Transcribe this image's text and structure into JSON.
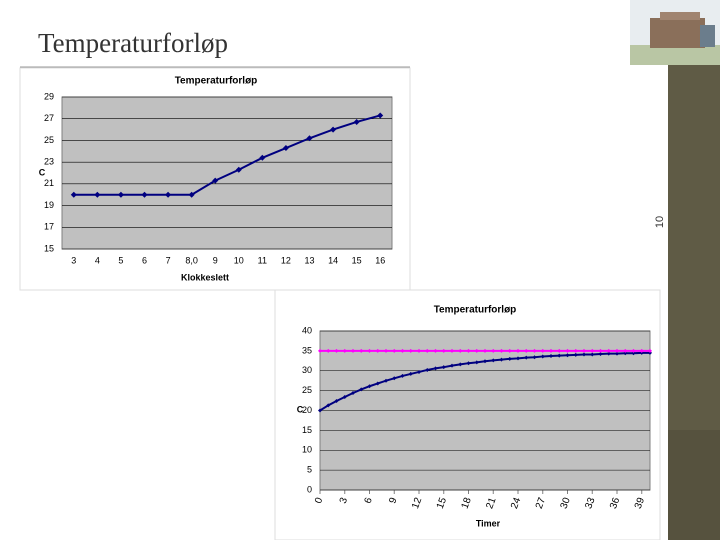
{
  "slide": {
    "title": "Temperaturforløp",
    "page_number": "10"
  },
  "chart_data": [
    {
      "type": "line",
      "title": "Temperaturforløp",
      "x_label": "Klokkeslett",
      "y_label": "C",
      "categories": [
        "3",
        "4",
        "5",
        "6",
        "7",
        "8,0",
        "9",
        "10",
        "11",
        "12",
        "13",
        "14",
        "15",
        "16"
      ],
      "series": [
        {
          "color": "#000080",
          "values": [
            20,
            20,
            20,
            20,
            20,
            20,
            21.3,
            22.3,
            23.4,
            24.3,
            25.2,
            26.0,
            26.7,
            27.3
          ]
        }
      ],
      "ylim": [
        15,
        29
      ],
      "yticks": [
        15,
        17,
        19,
        21,
        23,
        25,
        27,
        29
      ],
      "grid": true
    },
    {
      "type": "line",
      "title": "Temperaturforløp",
      "x_label": "Timer",
      "y_label": "C",
      "x": [
        0,
        1,
        2,
        3,
        4,
        5,
        6,
        7,
        8,
        9,
        10,
        11,
        12,
        13,
        14,
        15,
        16,
        17,
        18,
        19,
        20,
        21,
        22,
        23,
        24,
        25,
        26,
        27,
        28,
        29,
        30,
        31,
        32,
        33,
        34,
        35,
        36,
        37,
        38,
        39,
        40
      ],
      "series": [
        {
          "color": "#000080",
          "values": [
            20.0,
            21.3,
            22.4,
            23.4,
            24.4,
            25.3,
            26.1,
            26.8,
            27.5,
            28.1,
            28.7,
            29.2,
            29.7,
            30.2,
            30.6,
            30.9,
            31.3,
            31.6,
            31.9,
            32.1,
            32.4,
            32.6,
            32.8,
            33.0,
            33.1,
            33.3,
            33.4,
            33.6,
            33.7,
            33.8,
            33.9,
            34.0,
            34.1,
            34.1,
            34.2,
            34.3,
            34.3,
            34.4,
            34.4,
            34.5,
            34.5
          ]
        },
        {
          "color": "#ff00ff",
          "values": [
            35,
            35,
            35,
            35,
            35,
            35,
            35,
            35,
            35,
            35,
            35,
            35,
            35,
            35,
            35,
            35,
            35,
            35,
            35,
            35,
            35,
            35,
            35,
            35,
            35,
            35,
            35,
            35,
            35,
            35,
            35,
            35,
            35,
            35,
            35,
            35,
            35,
            35,
            35,
            35,
            35
          ]
        }
      ],
      "xlim": [
        0,
        40
      ],
      "xticks": [
        0,
        3,
        6,
        9,
        12,
        15,
        18,
        21,
        24,
        27,
        30,
        33,
        36,
        39
      ],
      "ylim": [
        0,
        40
      ],
      "yticks": [
        0,
        5,
        10,
        15,
        20,
        25,
        30,
        35,
        40
      ],
      "grid": true
    }
  ]
}
